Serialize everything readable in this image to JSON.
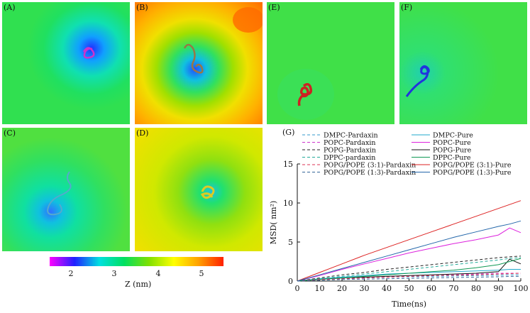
{
  "panels": {
    "A": {
      "label": "(A)"
    },
    "B": {
      "label": "(B)"
    },
    "C": {
      "label": "(C)"
    },
    "D": {
      "label": "(D)"
    },
    "E": {
      "label": "(E)"
    },
    "F": {
      "label": "(F)"
    },
    "G": {
      "label": "(G)"
    }
  },
  "colorbar": {
    "label": "Z (nm)",
    "ticks": [
      "2",
      "3",
      "4",
      "5"
    ],
    "range": [
      1.5,
      5.5
    ],
    "colors": [
      "#ff00ff",
      "#2020ff",
      "#00e0e0",
      "#00e060",
      "#80e000",
      "#ffff00",
      "#ffa000",
      "#ff2000"
    ]
  },
  "chart_data": {
    "type": "line",
    "title": "",
    "xlabel": "Time(ns)",
    "ylabel": "MSD( nm²)",
    "xlim": [
      0,
      100
    ],
    "ylim": [
      0,
      15
    ],
    "xticks": [
      "0",
      "10",
      "20",
      "30",
      "40",
      "50",
      "60",
      "70",
      "80",
      "90",
      "100"
    ],
    "yticks": [
      "0",
      "5",
      "10",
      "15"
    ],
    "legend_position": "top",
    "x": [
      0,
      10,
      20,
      30,
      40,
      50,
      60,
      70,
      80,
      90,
      95,
      100
    ],
    "series": [
      {
        "name": "DMPC-Pardaxin",
        "color": "#3399cc",
        "dash": true,
        "values": [
          0,
          0.2,
          0.3,
          0.4,
          0.5,
          0.55,
          0.6,
          0.65,
          0.7,
          0.75,
          0.8,
          0.8
        ]
      },
      {
        "name": "DMPC-Pure",
        "color": "#22aacc",
        "dash": false,
        "values": [
          0,
          0.3,
          0.5,
          0.7,
          0.9,
          1.0,
          1.1,
          1.2,
          1.3,
          1.4,
          1.5,
          1.5
        ]
      },
      {
        "name": "POPC-Pardaxin",
        "color": "#cc33cc",
        "dash": true,
        "values": [
          0,
          0.2,
          0.3,
          0.4,
          0.5,
          0.6,
          0.7,
          0.8,
          0.9,
          1.0,
          1.0,
          1.0
        ]
      },
      {
        "name": "POPC-Pure",
        "color": "#dd22dd",
        "dash": false,
        "values": [
          0,
          0.7,
          1.5,
          2.2,
          2.9,
          3.6,
          4.2,
          4.8,
          5.3,
          5.9,
          6.8,
          6.2
        ]
      },
      {
        "name": "POPG-Pardaxin",
        "color": "#222222",
        "dash": true,
        "values": [
          0,
          0.4,
          0.8,
          1.1,
          1.5,
          1.8,
          2.1,
          2.4,
          2.7,
          3.0,
          3.1,
          3.2
        ]
      },
      {
        "name": "POPG-Pure",
        "color": "#111111",
        "dash": false,
        "values": [
          0,
          0.2,
          0.4,
          0.5,
          0.6,
          0.7,
          0.8,
          0.9,
          1.0,
          1.2,
          2.8,
          2.2
        ]
      },
      {
        "name": "DPPC-pardaxin",
        "color": "#22aa99",
        "dash": true,
        "values": [
          0,
          0.3,
          0.6,
          0.9,
          1.2,
          1.5,
          1.8,
          2.1,
          2.4,
          2.7,
          2.9,
          3.0
        ]
      },
      {
        "name": "DPPC-Pure",
        "color": "#119955",
        "dash": false,
        "values": [
          0,
          0.2,
          0.4,
          0.6,
          0.8,
          1.0,
          1.2,
          1.4,
          1.7,
          2.1,
          2.5,
          2.9
        ]
      },
      {
        "name": "POPG/POPE (3:1)-Pardaxin",
        "color": "#dd3355",
        "dash": true,
        "values": [
          0,
          0.2,
          0.3,
          0.4,
          0.5,
          0.6,
          0.7,
          0.75,
          0.8,
          0.9,
          0.95,
          1.0
        ]
      },
      {
        "name": "POPG/POPE (3:1)-Pure",
        "color": "#dd2222",
        "dash": false,
        "values": [
          0,
          1.1,
          2.2,
          3.3,
          4.3,
          5.3,
          6.3,
          7.3,
          8.3,
          9.3,
          9.8,
          10.3
        ]
      },
      {
        "name": "POPG/POPE (1:3)-Pardaxin",
        "color": "#336699",
        "dash": true,
        "values": [
          0,
          0.1,
          0.2,
          0.25,
          0.3,
          0.35,
          0.4,
          0.45,
          0.5,
          0.55,
          0.6,
          0.6
        ]
      },
      {
        "name": "POPG/POPE (1:3)-Pure",
        "color": "#2266aa",
        "dash": false,
        "values": [
          0,
          0.8,
          1.6,
          2.4,
          3.2,
          4.0,
          4.8,
          5.6,
          6.3,
          7.0,
          7.3,
          7.7
        ]
      }
    ]
  }
}
